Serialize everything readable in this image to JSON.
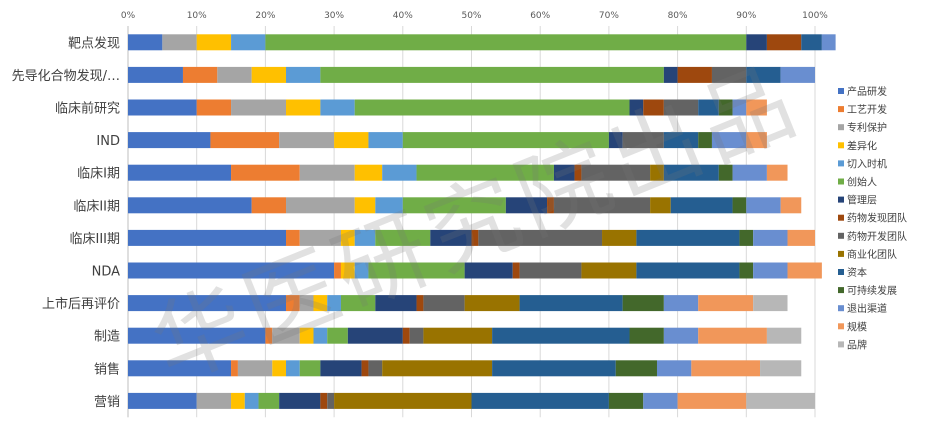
{
  "chart_data": {
    "type": "bar",
    "orientation": "horizontal",
    "stacked": "percent",
    "xlim": [
      0,
      100
    ],
    "x_ticks": [
      "0%",
      "10%",
      "20%",
      "30%",
      "40%",
      "50%",
      "60%",
      "70%",
      "80%",
      "90%",
      "100%"
    ],
    "grid": true,
    "legend_position": "right",
    "categories": [
      "靶点发现",
      "先导化合物发现/…",
      "临床前研究",
      "IND",
      "临床I期",
      "临床II期",
      "临床III期",
      "NDA",
      "上市后再评价",
      "制造",
      "销售",
      "营销"
    ],
    "series": [
      {
        "name": "产品研发",
        "color": "#4472C4",
        "values": [
          5,
          8,
          10,
          12,
          15,
          18,
          23,
          30,
          23,
          20,
          15,
          10
        ]
      },
      {
        "name": "工艺开发",
        "color": "#ED7D31",
        "values": [
          0,
          5,
          5,
          10,
          10,
          5,
          2,
          1,
          2,
          1,
          1,
          0
        ]
      },
      {
        "name": "专利保护",
        "color": "#A5A5A5",
        "values": [
          5,
          5,
          8,
          8,
          8,
          10,
          6,
          0,
          2,
          4,
          5,
          5
        ]
      },
      {
        "name": "差异化",
        "color": "#FFC000",
        "values": [
          5,
          5,
          5,
          5,
          4,
          3,
          2,
          2,
          2,
          2,
          2,
          2
        ]
      },
      {
        "name": "切入时机",
        "color": "#5B9BD5",
        "values": [
          5,
          5,
          5,
          5,
          5,
          4,
          3,
          2,
          2,
          2,
          2,
          2
        ]
      },
      {
        "name": "创始人",
        "color": "#70AD47",
        "values": [
          70,
          50,
          40,
          30,
          20,
          15,
          8,
          14,
          5,
          3,
          3,
          3
        ]
      },
      {
        "name": "管理层",
        "color": "#264478",
        "values": [
          3,
          2,
          2,
          2,
          3,
          6,
          6,
          7,
          6,
          8,
          6,
          6
        ]
      },
      {
        "name": "药物发现团队",
        "color": "#9E480E",
        "values": [
          5,
          5,
          3,
          0,
          1,
          1,
          1,
          1,
          1,
          1,
          1,
          1
        ]
      },
      {
        "name": "药物开发团队",
        "color": "#636363",
        "values": [
          0,
          5,
          5,
          6,
          10,
          14,
          18,
          9,
          6,
          2,
          2,
          1
        ]
      },
      {
        "name": "商业化团队",
        "color": "#997300",
        "values": [
          0,
          0,
          0,
          0,
          2,
          3,
          5,
          8,
          8,
          10,
          16,
          20
        ]
      },
      {
        "name": "资本",
        "color": "#255E91",
        "values": [
          3,
          5,
          3,
          5,
          8,
          9,
          15,
          15,
          15,
          20,
          18,
          20
        ]
      },
      {
        "name": "可持续发展",
        "color": "#43682B",
        "values": [
          0,
          0,
          2,
          2,
          2,
          2,
          2,
          2,
          6,
          5,
          6,
          5
        ]
      },
      {
        "name": "退出渠道",
        "color": "#698ED0",
        "values": [
          2,
          5,
          2,
          5,
          5,
          5,
          5,
          5,
          5,
          5,
          5,
          5
        ]
      },
      {
        "name": "规模",
        "color": "#F1975A",
        "values": [
          0,
          0,
          3,
          3,
          3,
          3,
          4,
          5,
          8,
          10,
          10,
          10
        ]
      },
      {
        "name": "品牌",
        "color": "#B7B7B7",
        "values": [
          0,
          0,
          0,
          0,
          0,
          0,
          0,
          0,
          5,
          5,
          6,
          10
        ]
      }
    ]
  },
  "watermark": "华医研究院出品"
}
